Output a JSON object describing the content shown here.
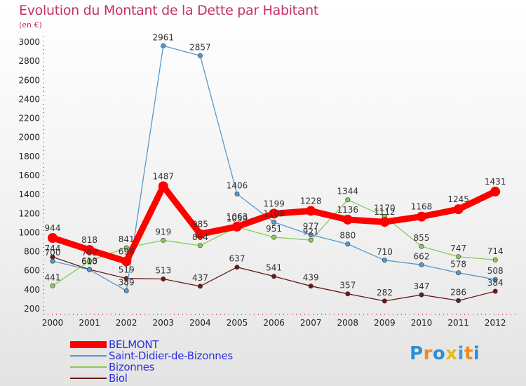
{
  "title": "Evolution du Montant de la Dette par Habitant",
  "subtitle": "(en €)",
  "logo": {
    "text": "Proxiti",
    "letters": [
      "P",
      "r",
      "o",
      "x",
      "i",
      "t",
      "i"
    ],
    "colors": [
      "#2a8fd6",
      "#f08a1c",
      "#2a8fd6",
      "#e8b81e",
      "#3aa0e0",
      "#f08a1c",
      "#2a8fd6"
    ]
  },
  "chart_data": {
    "type": "line",
    "title": "Evolution du Montant de la Dette par Habitant",
    "subtitle": "(en €)",
    "xlabel": "",
    "ylabel": "",
    "x": [
      "2000",
      "2001",
      "2002",
      "2003",
      "2004",
      "2005",
      "2006",
      "2007",
      "2008",
      "2009",
      "2010",
      "2011",
      "2012"
    ],
    "ylim": [
      200,
      3000
    ],
    "yticks": [
      200,
      400,
      600,
      800,
      1000,
      1200,
      1400,
      1600,
      1800,
      2000,
      2200,
      2400,
      2600,
      2800,
      3000
    ],
    "grid": false,
    "legend_position": "bottom-left",
    "series": [
      {
        "name": "BELMONT",
        "color": "#ff0000",
        "values": [
          944,
          818,
          698,
          1487,
          985,
          1063,
          1199,
          1228,
          1136,
          1112,
          1168,
          1245,
          1431
        ]
      },
      {
        "name": "Saint-Didier-de-Bizonnes",
        "color": "#5599cc",
        "values": [
          700,
          610,
          389,
          2961,
          2857,
          1406,
          1109,
          977,
          880,
          710,
          662,
          578,
          508
        ]
      },
      {
        "name": "Bizonnes",
        "color": "#88cc55",
        "values": [
          441,
          702,
          841,
          919,
          864,
          1059,
          951,
          921,
          1344,
          1170,
          855,
          747,
          714
        ]
      },
      {
        "name": "Biol",
        "color": "#6b1a1a",
        "values": [
          744,
          613,
          519,
          513,
          437,
          637,
          541,
          439,
          357,
          282,
          347,
          286,
          384
        ]
      }
    ]
  }
}
